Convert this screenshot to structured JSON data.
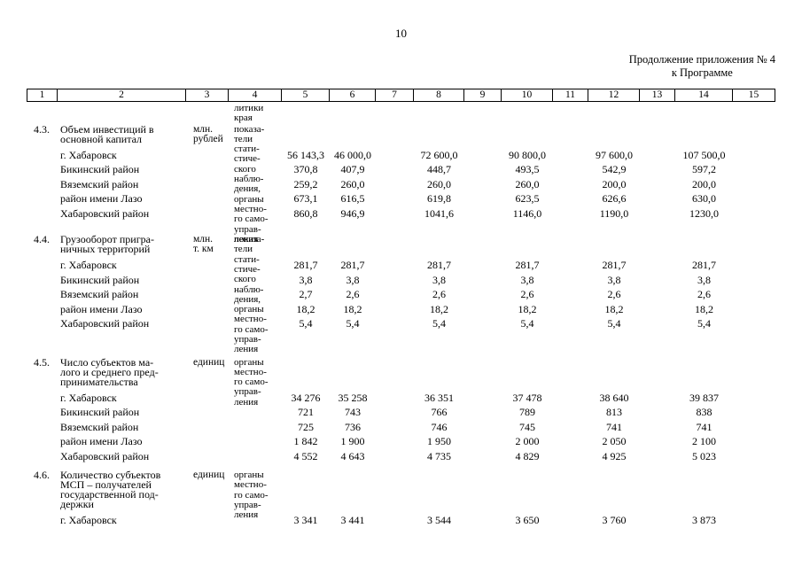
{
  "page": {
    "number": "10",
    "caption": "Продолжение приложения № 4\nк Программе"
  },
  "table": {
    "header_columns": [
      "1",
      "2",
      "3",
      "4",
      "5",
      "6",
      "7",
      "8",
      "9",
      "10",
      "11",
      "12",
      "13",
      "14",
      "15"
    ],
    "column_4_carryover_text": "литики\nкрая",
    "value_column_numbers": [
      5,
      6,
      8,
      10,
      12,
      14
    ],
    "sections": [
      {
        "num": "4.3.",
        "title": "Объем инвестиций в\nосновной капитал",
        "unit": "млн.\nрублей",
        "source": "показа-\nтели\nстати-\nстиче-\nского\nнаблю-\nдения,\nорганы\nместно-\nго само-\nуправ-\nления",
        "rows": [
          {
            "name": "г. Хабаровск",
            "values": [
              "56 143,3",
              "46 000,0",
              "72 600,0",
              "90 800,0",
              "97 600,0",
              "107 500,0"
            ]
          },
          {
            "name": "Бикинский район",
            "values": [
              "370,8",
              "407,9",
              "448,7",
              "493,5",
              "542,9",
              "597,2"
            ]
          },
          {
            "name": "Вяземский район",
            "values": [
              "259,2",
              "260,0",
              "260,0",
              "260,0",
              "200,0",
              "200,0"
            ]
          },
          {
            "name": "район имени Лазо",
            "values": [
              "673,1",
              "616,5",
              "619,8",
              "623,5",
              "626,6",
              "630,0"
            ]
          },
          {
            "name": "Хабаровский район",
            "values": [
              "860,8",
              "946,9",
              "1041,6",
              "1146,0",
              "1190,0",
              "1230,0"
            ]
          }
        ]
      },
      {
        "num": "4.4.",
        "title": "Грузооборот пригра-\nничных территорий",
        "unit": "млн.\nт. км",
        "source": "показа-\nтели\nстати-\nстиче-\nского\nнаблю-\nдения,\nорганы\nместно-\nго само-\nуправ-\nления",
        "rows": [
          {
            "name": "г. Хабаровск",
            "values": [
              "281,7",
              "281,7",
              "281,7",
              "281,7",
              "281,7",
              "281,7"
            ]
          },
          {
            "name": "Бикинский район",
            "values": [
              "3,8",
              "3,8",
              "3,8",
              "3,8",
              "3,8",
              "3,8"
            ]
          },
          {
            "name": "Вяземский район",
            "values": [
              "2,7",
              "2,6",
              "2,6",
              "2,6",
              "2,6",
              "2,6"
            ]
          },
          {
            "name": "район имени Лазо",
            "values": [
              "18,2",
              "18,2",
              "18,2",
              "18,2",
              "18,2",
              "18,2"
            ]
          },
          {
            "name": "Хабаровский район",
            "values": [
              "5,4",
              "5,4",
              "5,4",
              "5,4",
              "5,4",
              "5,4"
            ]
          }
        ]
      },
      {
        "num": "4.5.",
        "title": "Число субъектов ма-\nлого и среднего пред-\nпринимательства",
        "unit": "единиц",
        "source": "органы\nместно-\nго само-\nуправ-\nления",
        "rows": [
          {
            "name": "г. Хабаровск",
            "values": [
              "34 276",
              "35 258",
              "36 351",
              "37 478",
              "38 640",
              "39 837"
            ]
          },
          {
            "name": "Бикинский район",
            "values": [
              "721",
              "743",
              "766",
              "789",
              "813",
              "838"
            ]
          },
          {
            "name": "Вяземский район",
            "values": [
              "725",
              "736",
              "746",
              "745",
              "741",
              "741"
            ]
          },
          {
            "name": "район имени Лазо",
            "values": [
              "1 842",
              "1 900",
              "1 950",
              "2 000",
              "2 050",
              "2 100"
            ]
          },
          {
            "name": "Хабаровский район",
            "values": [
              "4 552",
              "4 643",
              "4 735",
              "4 829",
              "4 925",
              "5 023"
            ]
          }
        ]
      },
      {
        "num": "4.6.",
        "title": "Количество субъектов\nМСП – получателей\nгосударственной под-\nдержки",
        "unit": "единиц",
        "source": "органы\nместно-\nго само-\nуправ-\nления",
        "rows": [
          {
            "name": "г. Хабаровск",
            "values": [
              "3 341",
              "3 441",
              "3 544",
              "3 650",
              "3 760",
              "3 873"
            ]
          }
        ]
      }
    ]
  }
}
